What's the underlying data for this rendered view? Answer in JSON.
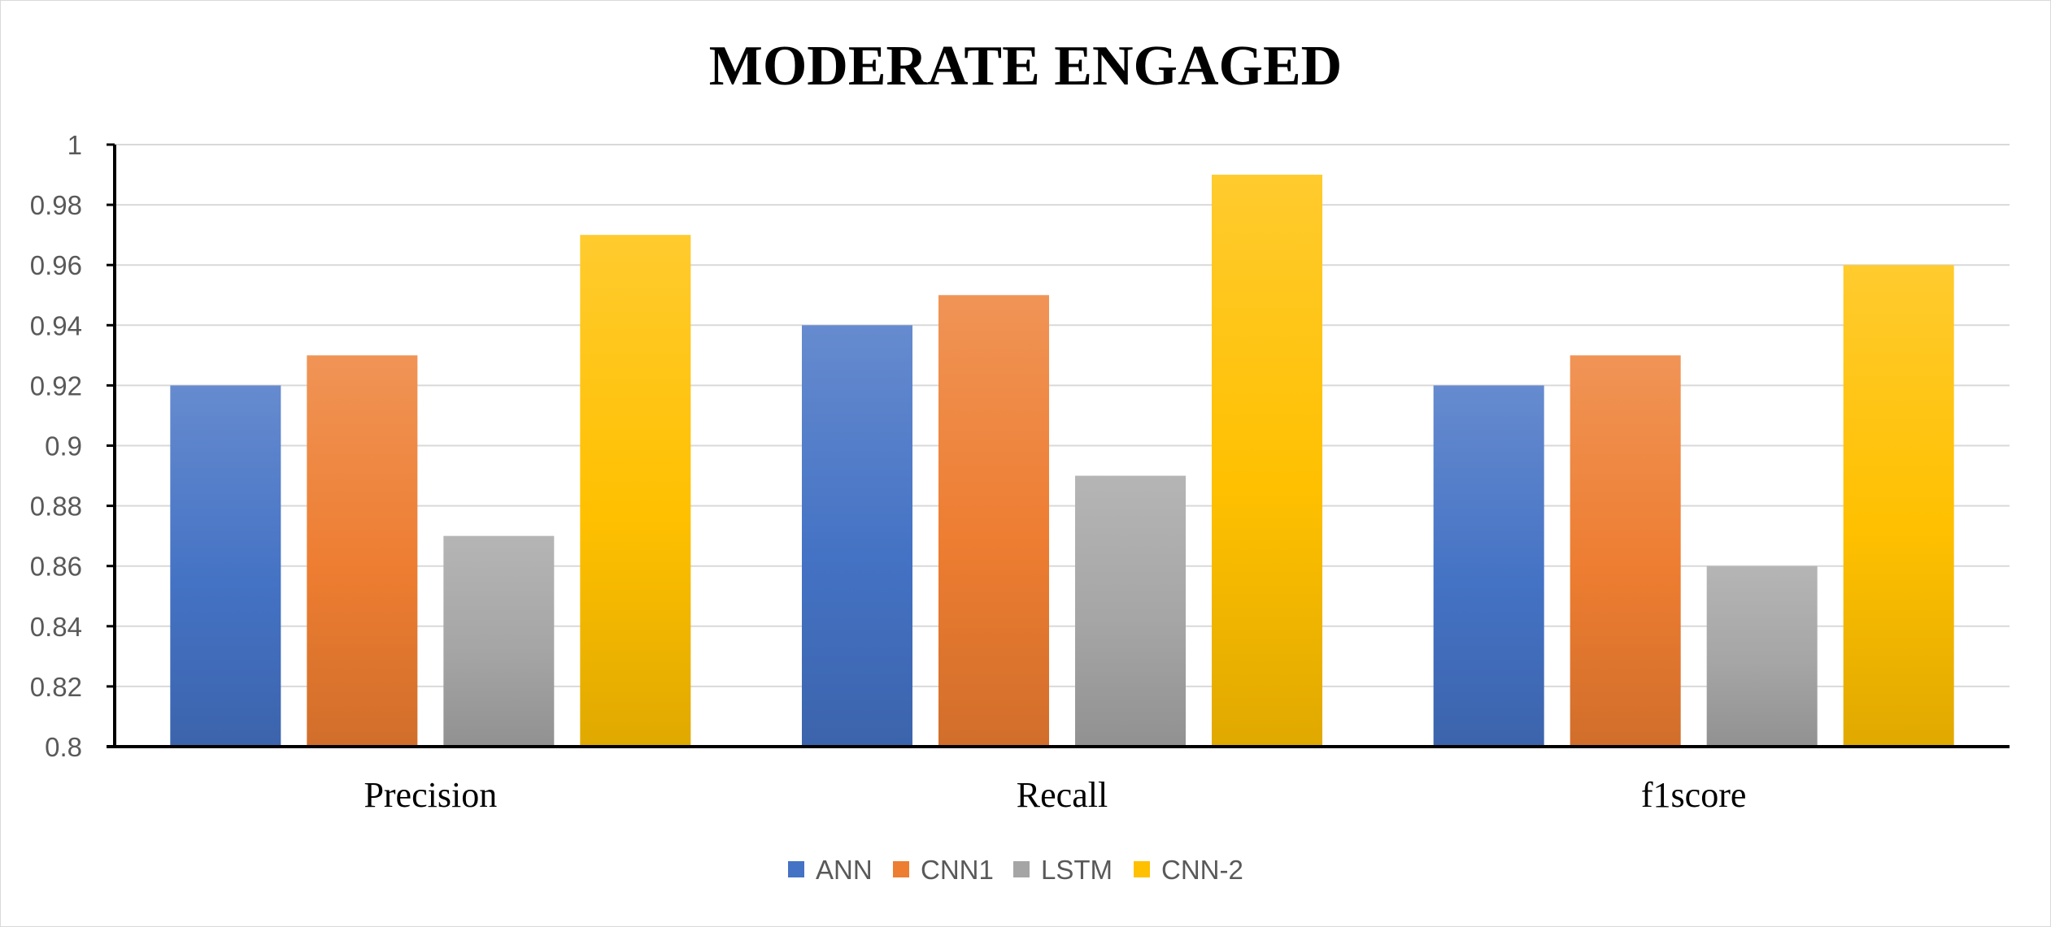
{
  "chart_data": {
    "type": "bar",
    "title": "MODERATE ENGAGED",
    "categories": [
      "Precision",
      "Recall",
      "f1score"
    ],
    "series": [
      {
        "name": "ANN",
        "values": [
          0.92,
          0.94,
          0.92
        ],
        "color": "#4472C4"
      },
      {
        "name": "CNN1",
        "values": [
          0.93,
          0.95,
          0.93
        ],
        "color": "#ED7D31"
      },
      {
        "name": "LSTM",
        "values": [
          0.87,
          0.89,
          0.86
        ],
        "color": "#A5A5A5"
      },
      {
        "name": "CNN-2",
        "values": [
          0.97,
          0.99,
          0.96
        ],
        "color": "#FFC000"
      }
    ],
    "ylim": [
      0.8,
      1.0
    ],
    "yticks": [
      "0.8",
      "0.82",
      "0.84",
      "0.86",
      "0.88",
      "0.9",
      "0.92",
      "0.94",
      "0.96",
      "0.98",
      "1"
    ],
    "grid": true,
    "legend_position": "bottom"
  }
}
